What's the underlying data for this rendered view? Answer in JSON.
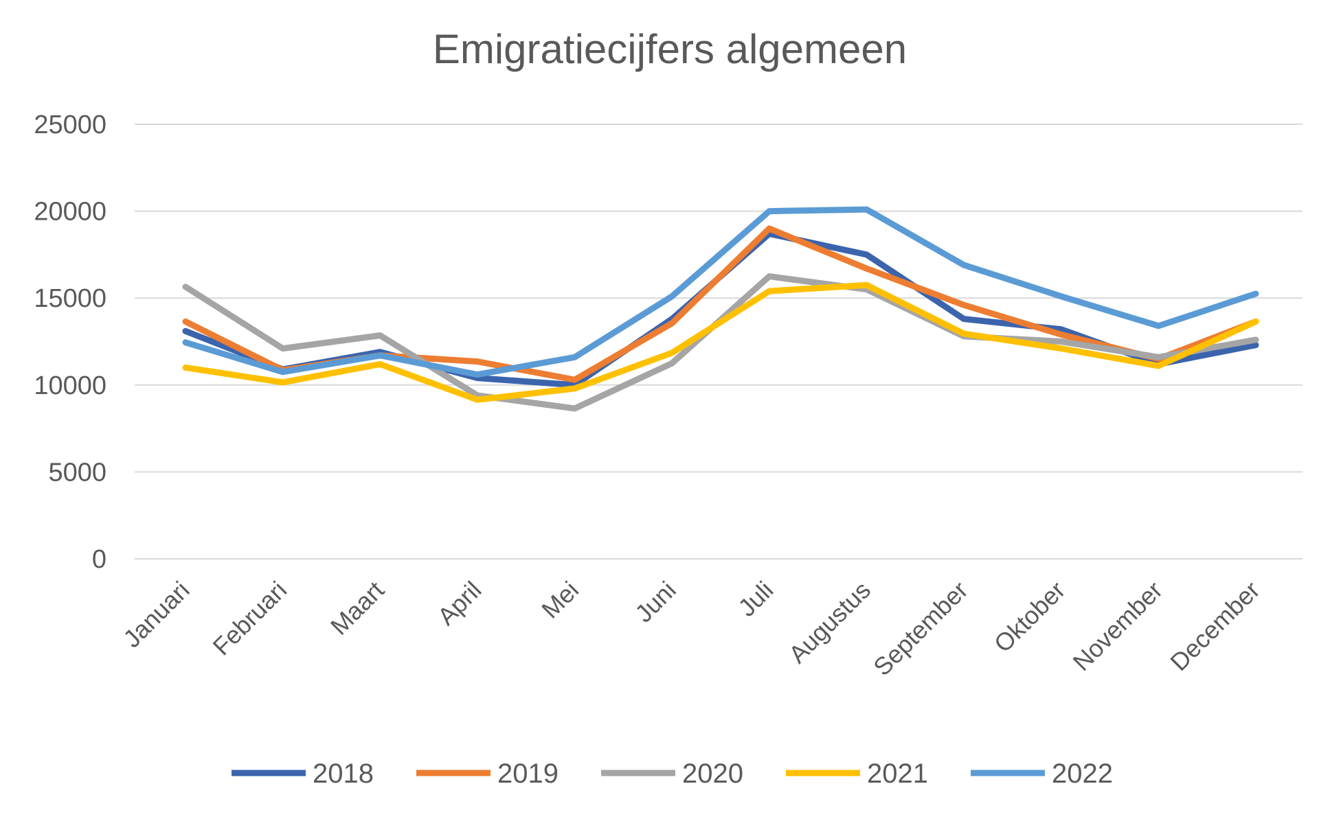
{
  "chart_data": {
    "type": "line",
    "title": "Emigratiecijfers algemeen",
    "xlabel": "",
    "ylabel": "",
    "ylim": [
      0,
      25000
    ],
    "yticks": [
      "0",
      "5000",
      "10000",
      "15000",
      "20000",
      "25000"
    ],
    "ytick_values": [
      0,
      5000,
      10000,
      15000,
      20000,
      25000
    ],
    "grid": true,
    "legend_position": "bottom",
    "categories": [
      "Januari",
      "Februari",
      "Maart",
      "April",
      "Mei",
      "Juni",
      "Juli",
      "Augustus",
      "September",
      "Oktober",
      "November",
      "December"
    ],
    "series": [
      {
        "name": "2018",
        "color": "#3B64AD",
        "values": [
          13100,
          10900,
          11900,
          10400,
          10000,
          13800,
          18700,
          17500,
          13800,
          13200,
          11200,
          12300
        ]
      },
      {
        "name": "2019",
        "color": "#ED7D31",
        "values": [
          13650,
          10850,
          11700,
          11350,
          10300,
          13550,
          19000,
          16700,
          14600,
          12900,
          11500,
          13650
        ]
      },
      {
        "name": "2020",
        "color": "#A5A5A5",
        "values": [
          15650,
          12100,
          12850,
          9400,
          8650,
          11250,
          16250,
          15500,
          12800,
          12500,
          11600,
          12600
        ]
      },
      {
        "name": "2021",
        "color": "#FFC000",
        "values": [
          11000,
          10150,
          11200,
          9150,
          9800,
          11850,
          15400,
          15750,
          12950,
          12100,
          11100,
          13650
        ]
      },
      {
        "name": "2022",
        "color": "#5B9BD5",
        "values": [
          12450,
          10750,
          11700,
          10600,
          11600,
          15100,
          20000,
          20100,
          16900,
          15100,
          13400,
          15250
        ]
      }
    ]
  }
}
